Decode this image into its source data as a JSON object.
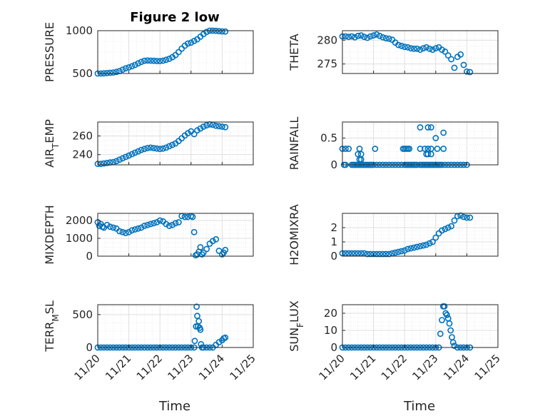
{
  "chart_data": [
    {
      "type": "scatter",
      "title": "Figure 2 low",
      "xlabel": "",
      "ylabel": "PRESSURE",
      "xlim": [
        "11/20",
        "11/25"
      ],
      "ylim": [
        500,
        1000
      ],
      "yticks": [
        500,
        1000
      ],
      "xticklabels": [],
      "grid": true,
      "series": [
        {
          "x": [
            0.0,
            0.1,
            0.2,
            0.3,
            0.4,
            0.5,
            0.6,
            0.7,
            0.8,
            0.9,
            1.0,
            1.1,
            1.2,
            1.3,
            1.4,
            1.5,
            1.6,
            1.7,
            1.8,
            1.9,
            2.0,
            2.1,
            2.2,
            2.3,
            2.4,
            2.5,
            2.6,
            2.7,
            2.8,
            2.9,
            3.0,
            3.1,
            3.2,
            3.3,
            3.4,
            3.5,
            3.6,
            3.7,
            3.8,
            3.9,
            4.0,
            4.1
          ],
          "y": [
            500,
            500,
            502,
            505,
            508,
            512,
            518,
            528,
            545,
            560,
            572,
            585,
            600,
            618,
            635,
            648,
            652,
            650,
            648,
            646,
            645,
            650,
            660,
            672,
            690,
            715,
            750,
            790,
            825,
            850,
            860,
            880,
            900,
            930,
            960,
            985,
            1000,
            1000,
            998,
            995,
            992,
            990
          ]
        }
      ]
    },
    {
      "type": "scatter",
      "title": "",
      "xlabel": "",
      "ylabel": "THETA",
      "xlim": [
        "11/20",
        "11/25"
      ],
      "ylim": [
        273,
        282
      ],
      "yticks": [
        275,
        280
      ],
      "xticklabels": [],
      "grid": true,
      "series": [
        {
          "x": [
            0.0,
            0.1,
            0.2,
            0.3,
            0.4,
            0.5,
            0.6,
            0.7,
            0.8,
            0.9,
            1.0,
            1.1,
            1.2,
            1.3,
            1.4,
            1.5,
            1.6,
            1.7,
            1.8,
            1.9,
            2.0,
            2.1,
            2.2,
            2.3,
            2.4,
            2.5,
            2.6,
            2.7,
            2.8,
            2.9,
            3.0,
            3.1,
            3.2,
            3.3,
            3.4,
            3.5,
            3.6,
            3.7,
            3.8,
            3.9,
            4.0,
            4.1
          ],
          "y": [
            280.8,
            280.8,
            280.7,
            280.8,
            280.6,
            280.9,
            281.0,
            280.7,
            280.5,
            280.8,
            281.0,
            281.2,
            280.9,
            280.6,
            280.4,
            280.3,
            280.1,
            279.5,
            279.0,
            278.8,
            278.6,
            278.5,
            278.3,
            278.2,
            278.2,
            278.0,
            278.3,
            278.5,
            278.2,
            278.0,
            278.3,
            278.5,
            278.0,
            277.6,
            276.8,
            276.0,
            274.2,
            276.5,
            277.0,
            274.8,
            273.4,
            273.3
          ]
        }
      ]
    },
    {
      "type": "scatter",
      "title": "",
      "xlabel": "",
      "ylabel": "AIR_TEMP",
      "ylabel_main": "AIR",
      "ylabel_sub": "T",
      "ylabel_tail": "EMP",
      "xlim": [
        "11/20",
        "11/25"
      ],
      "ylim": [
        229,
        275
      ],
      "yticks": [
        240,
        260
      ],
      "xticklabels": [],
      "grid": true,
      "series": [
        {
          "x": [
            0.0,
            0.1,
            0.2,
            0.3,
            0.4,
            0.5,
            0.6,
            0.7,
            0.8,
            0.9,
            1.0,
            1.1,
            1.2,
            1.3,
            1.4,
            1.5,
            1.6,
            1.7,
            1.8,
            1.9,
            2.0,
            2.1,
            2.2,
            2.3,
            2.4,
            2.5,
            2.6,
            2.7,
            2.8,
            2.9,
            3.0,
            3.1,
            3.2,
            3.3,
            3.4,
            3.5,
            3.6,
            3.7,
            3.8,
            3.9,
            4.0,
            4.1
          ],
          "y": [
            230,
            230,
            230.5,
            231,
            231.5,
            232,
            233,
            234.5,
            236,
            237.5,
            239,
            240.5,
            242,
            243.5,
            245,
            246,
            247,
            247.5,
            247,
            246.5,
            246,
            246.5,
            247.5,
            249,
            250.5,
            252,
            254.5,
            257.5,
            260.5,
            263,
            265,
            262,
            266,
            268,
            270,
            271.5,
            272.5,
            272,
            271,
            270.5,
            270,
            269.5
          ]
        }
      ]
    },
    {
      "type": "scatter",
      "title": "",
      "xlabel": "",
      "ylabel": "RAINFALL",
      "xlim": [
        "11/20",
        "11/25"
      ],
      "ylim": [
        0,
        0.8
      ],
      "yticks": [
        0,
        0.5
      ],
      "xticklabels": [],
      "grid": true,
      "series": [
        {
          "x": [
            0.0,
            0.1,
            0.2,
            0.3,
            0.35,
            0.4,
            0.45,
            0.5,
            0.55,
            0.6,
            0.65,
            0.7,
            0.75,
            0.8,
            0.85,
            0.9,
            0.95,
            1.0,
            1.1,
            1.2,
            1.3,
            1.4,
            1.5,
            1.6,
            1.7,
            1.8,
            1.9,
            2.0,
            2.05,
            2.1,
            2.15,
            2.2,
            2.25,
            2.3,
            2.35,
            2.4,
            2.5,
            2.55,
            2.6,
            2.65,
            2.7,
            2.75,
            2.8,
            2.85,
            2.9,
            2.95,
            3.0,
            3.05,
            3.1,
            3.15,
            3.2,
            3.3,
            3.4,
            3.5,
            3.6,
            3.7,
            3.8,
            3.9,
            4.0,
            0.05,
            0.1,
            0.5,
            0.55,
            0.6,
            1.05,
            1.95,
            2.0,
            2.05,
            2.1,
            2.15,
            2.5,
            2.65,
            2.75,
            2.85,
            3.05,
            0.55,
            0.6,
            2.7,
            2.75,
            2.85,
            3.25,
            3.0,
            2.5,
            2.75,
            2.85,
            3.25
          ],
          "y": [
            0.3,
            0.3,
            0.3,
            0.0,
            0.0,
            0.0,
            0.0,
            0.0,
            0.0,
            0.0,
            0.0,
            0.0,
            0.0,
            0.0,
            0.0,
            0.0,
            0.0,
            0.0,
            0.0,
            0.0,
            0.0,
            0.0,
            0.0,
            0.0,
            0.0,
            0.0,
            0.0,
            0.0,
            0.0,
            0.0,
            0.0,
            0.0,
            0.0,
            0.0,
            0.0,
            0.0,
            0.0,
            0.0,
            0.0,
            0.0,
            0.0,
            0.0,
            0.0,
            0.0,
            0.0,
            0.0,
            0.0,
            0.0,
            0.0,
            0.0,
            0.0,
            0.0,
            0.0,
            0.0,
            0.0,
            0.0,
            0.0,
            0.0,
            0.0,
            0.0,
            0.0,
            0.2,
            0.3,
            0.2,
            0.3,
            0.3,
            0.3,
            0.3,
            0.3,
            0.3,
            0.3,
            0.3,
            0.3,
            0.3,
            0.3,
            0.1,
            0.1,
            0.2,
            0.2,
            0.2,
            0.3,
            0.5,
            0.7,
            0.7,
            0.7,
            0.6
          ]
        }
      ]
    },
    {
      "type": "scatter",
      "title": "",
      "xlabel": "",
      "ylabel": "MIXDEPTH",
      "xlim": [
        "11/20",
        "11/25"
      ],
      "ylim": [
        0,
        2400
      ],
      "yticks": [
        0,
        1000,
        2000
      ],
      "xticklabels": [],
      "grid": true,
      "series": [
        {
          "x": [
            0.0,
            0.05,
            0.1,
            0.15,
            0.2,
            0.3,
            0.4,
            0.5,
            0.6,
            0.7,
            0.8,
            0.9,
            1.0,
            1.1,
            1.2,
            1.3,
            1.4,
            1.5,
            1.6,
            1.7,
            1.8,
            1.9,
            2.0,
            2.1,
            2.2,
            2.3,
            2.4,
            2.5,
            2.6,
            2.7,
            2.8,
            2.9,
            3.0,
            3.05,
            3.1,
            3.15,
            3.2,
            3.25,
            3.3,
            3.35,
            3.4,
            3.5,
            3.6,
            3.7,
            3.8,
            3.9,
            4.0,
            4.05,
            4.1
          ],
          "y": [
            1900,
            1700,
            1800,
            1650,
            1600,
            1750,
            1650,
            1600,
            1550,
            1400,
            1350,
            1300,
            1350,
            1450,
            1500,
            1550,
            1600,
            1700,
            1750,
            1800,
            1850,
            1900,
            2000,
            1950,
            1800,
            1700,
            1750,
            1850,
            1900,
            2250,
            2200,
            2200,
            2250,
            2200,
            1350,
            50,
            100,
            250,
            500,
            100,
            200,
            400,
            700,
            850,
            950,
            300,
            100,
            200,
            350
          ]
        }
      ]
    },
    {
      "type": "scatter",
      "title": "",
      "xlabel": "",
      "ylabel": "H2OMIXRA",
      "xlim": [
        "11/20",
        "11/25"
      ],
      "ylim": [
        0,
        3
      ],
      "yticks": [
        0,
        1,
        2
      ],
      "xticklabels": [],
      "grid": true,
      "series": [
        {
          "x": [
            0.0,
            0.1,
            0.2,
            0.3,
            0.4,
            0.5,
            0.6,
            0.7,
            0.8,
            0.9,
            1.0,
            1.1,
            1.2,
            1.3,
            1.4,
            1.5,
            1.6,
            1.7,
            1.8,
            1.9,
            2.0,
            2.1,
            2.2,
            2.3,
            2.4,
            2.5,
            2.6,
            2.7,
            2.8,
            2.9,
            3.0,
            3.1,
            3.2,
            3.3,
            3.4,
            3.5,
            3.6,
            3.7,
            3.8,
            3.9,
            4.0,
            4.1
          ],
          "y": [
            0.2,
            0.2,
            0.2,
            0.2,
            0.2,
            0.2,
            0.2,
            0.2,
            0.15,
            0.15,
            0.15,
            0.15,
            0.15,
            0.15,
            0.15,
            0.15,
            0.2,
            0.25,
            0.3,
            0.35,
            0.4,
            0.5,
            0.55,
            0.6,
            0.65,
            0.7,
            0.75,
            0.8,
            0.9,
            1.0,
            1.3,
            1.6,
            1.8,
            1.9,
            2.0,
            2.1,
            2.5,
            2.8,
            2.85,
            2.75,
            2.7,
            2.7
          ]
        }
      ]
    },
    {
      "type": "scatter",
      "title": "",
      "xlabel": "Time",
      "ylabel": "TERR_MSL",
      "ylabel_main": "TERR",
      "ylabel_sub": "M",
      "ylabel_tail": "SL",
      "xlim": [
        "11/20",
        "11/25"
      ],
      "ylim": [
        0,
        650
      ],
      "yticks": [
        0,
        500
      ],
      "xticklabels": [
        "11/20",
        "11/21",
        "11/22",
        "11/23",
        "11/24",
        "11/25"
      ],
      "grid": true,
      "series": [
        {
          "x": [
            0.0,
            0.1,
            0.2,
            0.3,
            0.4,
            0.5,
            0.6,
            0.7,
            0.8,
            0.9,
            1.0,
            1.1,
            1.2,
            1.3,
            1.4,
            1.5,
            1.6,
            1.7,
            1.8,
            1.9,
            2.0,
            2.1,
            2.2,
            2.3,
            2.4,
            2.5,
            2.6,
            2.7,
            2.8,
            2.9,
            3.0,
            3.1,
            3.12,
            3.16,
            3.18,
            3.2,
            3.22,
            3.25,
            3.28,
            3.3,
            3.32,
            3.35,
            3.4,
            3.5,
            3.6,
            3.7,
            3.8,
            3.9,
            4.0,
            4.05,
            4.1
          ],
          "y": [
            0,
            0,
            0,
            0,
            0,
            0,
            0,
            0,
            0,
            0,
            0,
            0,
            0,
            0,
            0,
            0,
            0,
            0,
            0,
            0,
            0,
            0,
            0,
            0,
            0,
            0,
            0,
            0,
            0,
            0,
            0,
            0,
            100,
            320,
            620,
            480,
            320,
            400,
            300,
            270,
            50,
            0,
            0,
            0,
            0,
            0,
            40,
            80,
            110,
            140,
            150
          ]
        }
      ]
    },
    {
      "type": "scatter",
      "title": "",
      "xlabel": "Time",
      "ylabel": "SUN_FLUX",
      "ylabel_main": "SUN",
      "ylabel_sub": "F",
      "ylabel_tail": "LUX",
      "xlim": [
        "11/20",
        "11/25"
      ],
      "ylim": [
        0,
        25
      ],
      "yticks": [
        0,
        10,
        20
      ],
      "xticklabels": [
        "11/20",
        "11/21",
        "11/22",
        "11/23",
        "11/24",
        "11/25"
      ],
      "grid": true,
      "series": [
        {
          "x": [
            0.0,
            0.1,
            0.2,
            0.3,
            0.4,
            0.5,
            0.6,
            0.7,
            0.8,
            0.9,
            1.0,
            1.1,
            1.2,
            1.3,
            1.4,
            1.5,
            1.6,
            1.7,
            1.8,
            1.9,
            2.0,
            2.1,
            2.2,
            2.3,
            2.4,
            2.5,
            2.6,
            2.7,
            2.8,
            2.9,
            3.0,
            3.1,
            3.15,
            3.2,
            3.24,
            3.28,
            3.32,
            3.36,
            3.4,
            3.44,
            3.48,
            3.52,
            3.56,
            3.6,
            3.7,
            3.8,
            3.9,
            4.0,
            4.1
          ],
          "y": [
            0,
            0,
            0,
            0,
            0,
            0,
            0,
            0,
            0,
            0,
            0,
            0,
            0,
            0,
            0,
            0,
            0,
            0,
            0,
            0,
            0,
            0,
            0,
            0,
            0,
            0,
            0,
            0,
            0,
            0,
            0,
            0,
            8,
            16,
            24,
            24,
            20,
            19,
            17,
            14,
            10,
            6,
            3,
            1,
            0,
            0,
            0,
            0,
            0
          ]
        }
      ]
    }
  ]
}
